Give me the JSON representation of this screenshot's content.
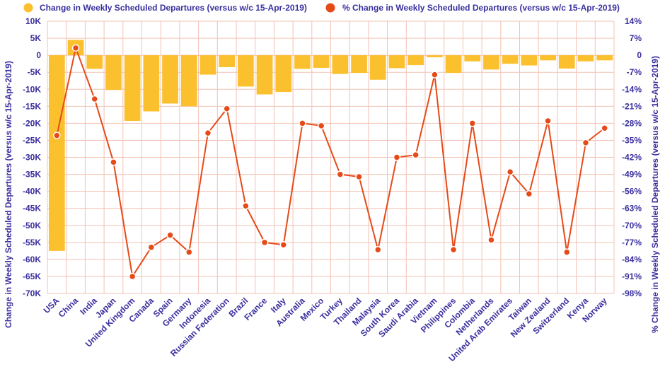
{
  "chart_data": {
    "type": "bar+line",
    "legend": [
      {
        "name": "Change in Weekly Scheduled Departures (versus w/c 15-Apr-2019)",
        "color": "#fbc02d",
        "marker": "circle"
      },
      {
        "name": "% Change in Weekly Scheduled Departures (versus w/c 15-Apr-2019)",
        "color": "#e64a19",
        "marker": "circle"
      }
    ],
    "categories": [
      "USA",
      "China",
      "India",
      "Japan",
      "United Kingdom",
      "Canada",
      "Spain",
      "Germany",
      "Indonesia",
      "Russian Federation",
      "Brazil",
      "France",
      "Italy",
      "Australia",
      "Mexico",
      "Turkey",
      "Thailand",
      "Malaysia",
      "South Korea",
      "Saudi Arabia",
      "Vietnam",
      "Philippines",
      "Colombia",
      "Netherlands",
      "United Arab Emirates",
      "Taiwan",
      "New Zealand",
      "Switzerland",
      "Kenya",
      "Norway"
    ],
    "series": [
      {
        "name": "Change in Weekly Scheduled Departures (versus w/c 15-Apr-2019)",
        "axis": "left",
        "type": "bar",
        "color": "#fbc02d",
        "values": [
          -57500,
          4500,
          -4000,
          -10200,
          -19300,
          -16500,
          -14200,
          -15000,
          -5700,
          -3500,
          -9200,
          -11500,
          -10800,
          -4000,
          -3700,
          -5500,
          -5200,
          -7200,
          -3800,
          -2900,
          -600,
          -5200,
          -1800,
          -4200,
          -2500,
          -3000,
          -1500,
          -3900,
          -1800,
          -1500
        ]
      },
      {
        "name": "% Change in Weekly Scheduled Departures (versus w/c 15-Apr-2019)",
        "axis": "right",
        "type": "line",
        "color": "#e64a19",
        "values": [
          -33,
          3,
          -18,
          -44,
          -91,
          -79,
          -74,
          -81,
          -32,
          -22,
          -62,
          -77,
          -78,
          -28,
          -29,
          -49,
          -50,
          -80,
          -42,
          -41,
          -8,
          -80,
          -28,
          -76,
          -48,
          -57,
          -27,
          -81,
          -36,
          -30
        ]
      }
    ],
    "left_axis": {
      "label": "Change in Weekly Scheduled Departures (versus w/c 15-Apr-2019)",
      "ylim": [
        -70000,
        10000
      ],
      "ticks": [
        10000,
        5000,
        0,
        -5000,
        -10000,
        -15000,
        -20000,
        -25000,
        -30000,
        -35000,
        -40000,
        -45000,
        -50000,
        -55000,
        -60000,
        -65000,
        -70000
      ],
      "tick_labels": [
        "10K",
        "5K",
        "0",
        "-5K",
        "-10K",
        "-15K",
        "-20K",
        "-25K",
        "-30K",
        "-35K",
        "-40K",
        "-45K",
        "-50K",
        "-55K",
        "-60K",
        "-65K",
        "-70K"
      ]
    },
    "right_axis": {
      "label": "% Change in Weekly Scheduled Departures (versus w/c 15-Apr-2019)",
      "ylim": [
        -98,
        14
      ],
      "ticks": [
        14,
        7,
        0,
        -7,
        -14,
        -21,
        -28,
        -35,
        -42,
        -49,
        -56,
        -63,
        -70,
        -77,
        -84,
        -91,
        -98
      ],
      "tick_labels": [
        "14%",
        "7%",
        "0",
        "-7%",
        "-14%",
        "-21%",
        "-28%",
        "-35%",
        "-42%",
        "-49%",
        "-56%",
        "-63%",
        "-70%",
        "-77%",
        "-84%",
        "-91%",
        "-98%"
      ]
    },
    "grid": true,
    "legend_position": "top-left"
  }
}
